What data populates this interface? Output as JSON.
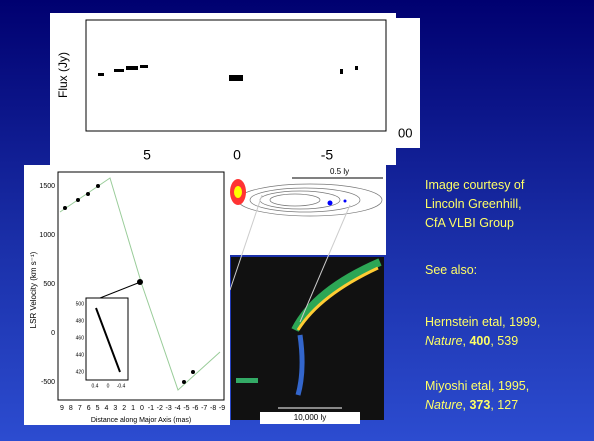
{
  "top_figure": {
    "y_label": "Flux (Jy)",
    "x_ticks": [
      5,
      0,
      -5
    ],
    "right_fragment": "00"
  },
  "diagram": {
    "scale_top": "0.5 ly",
    "scale_bottom": "10,000 ly"
  },
  "left_figure": {
    "y_label": "LSR Velocity (km s⁻¹)",
    "y_ticks": [
      1500,
      1000,
      500,
      0,
      -500
    ],
    "x_ticks": [
      9,
      8,
      7,
      6,
      5,
      4,
      3,
      2,
      1,
      0,
      -1,
      -2,
      -3,
      -4,
      -5,
      -6,
      -7,
      -8,
      -9
    ],
    "x_label": "Distance along Major Axis (mas)",
    "inset_y_ticks": [
      500,
      480,
      460,
      440,
      420
    ],
    "inset_x_ticks": [
      0.4,
      0,
      -0.4
    ]
  },
  "sidebar": {
    "credit": [
      "Image courtesy of",
      "Lincoln Greenhill,",
      "CfA VLBI Group"
    ],
    "see_also": "See also:",
    "refs": [
      {
        "authors": "Hernstein etal, 1999,",
        "journal": "Nature",
        "volume": "400",
        "page": ", 539"
      },
      {
        "authors": "Miyoshi etal, 1995,",
        "journal": "Nature",
        "volume": "373",
        "page": ", 127"
      }
    ]
  }
}
